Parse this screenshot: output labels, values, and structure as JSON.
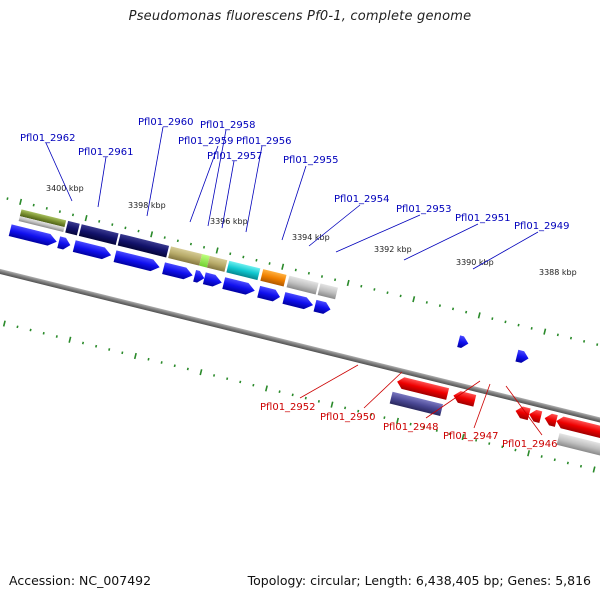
{
  "title": "Pseudomonas fluorescens Pf0-1, complete genome",
  "footer": {
    "accession": "Accession: NC_007492",
    "topology": "Topology: circular; Length: 6,438,405 bp; Genes: 5,816"
  },
  "scale_labels": [
    "3400 kbp",
    "3398 kbp",
    "3396 kbp",
    "3394 kbp",
    "3392 kbp",
    "3390 kbp",
    "3388 kbp"
  ],
  "forward_genes": [
    "Pfl01_2962",
    "Pfl01_2961",
    "Pfl01_2960",
    "Pfl01_2959",
    "Pfl01_2958",
    "Pfl01_2957",
    "Pfl01_2956",
    "Pfl01_2955",
    "Pfl01_2954",
    "Pfl01_2953",
    "Pfl01_2951",
    "Pfl01_2949"
  ],
  "reverse_genes": [
    "Pfl01_2952",
    "Pfl01_2950",
    "Pfl01_2948",
    "Pfl01_2947",
    "Pfl01_2946"
  ],
  "colors": {
    "forward_label": "#0000bb",
    "reverse_label": "#cc0000",
    "forward_arrow": "#1010ee",
    "reverse_arrow": "#ee0000",
    "backbone": "#888888",
    "tick": "#2a8a2a"
  }
}
